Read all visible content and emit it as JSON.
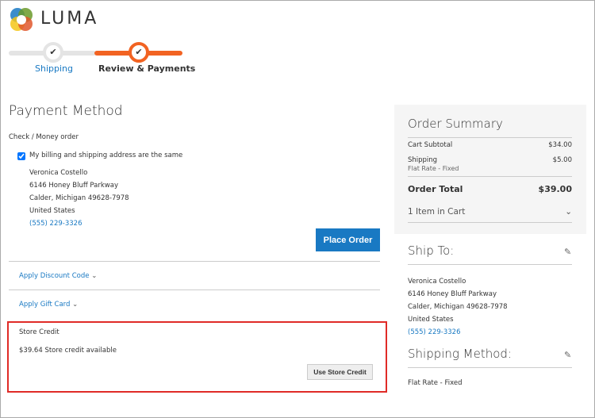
{
  "brand": {
    "name": "LUMA"
  },
  "progress": {
    "steps": [
      {
        "label": "Shipping",
        "status": "complete"
      },
      {
        "label": "Review & Payments",
        "status": "current"
      }
    ],
    "accent": "#f26322"
  },
  "payment": {
    "title": "Payment Method",
    "method": "Check / Money order",
    "same_address_label": "My billing and shipping address are the same",
    "same_address_checked": true,
    "address": [
      "Veronica Costello",
      "6146 Honey Bluff Parkway",
      "Calder, Michigan 49628-7978",
      "United States"
    ],
    "phone": "(555) 229-3326",
    "place_order": "Place Order",
    "discount": "Apply Discount Code",
    "gift_card": "Apply Gift Card",
    "store_credit": {
      "title": "Store Credit",
      "available": "$39.64 Store credit available",
      "button": "Use Store Credit",
      "highlight": "#e02b27"
    }
  },
  "summary": {
    "title": "Order Summary",
    "subtotal_label": "Cart Subtotal",
    "subtotal": "$34.00",
    "shipping_label": "Shipping",
    "shipping_method": "Flat Rate - Fixed",
    "shipping": "$5.00",
    "total_label": "Order Total",
    "total": "$39.00",
    "items": "1 Item in Cart"
  },
  "ship_to": {
    "title": "Ship To:",
    "address": [
      "Veronica Costello",
      "6146 Honey Bluff Parkway",
      "Calder, Michigan 49628-7978",
      "United States"
    ],
    "phone": "(555) 229-3326"
  },
  "shipping_method": {
    "title": "Shipping Method:",
    "value": "Flat Rate - Fixed"
  }
}
